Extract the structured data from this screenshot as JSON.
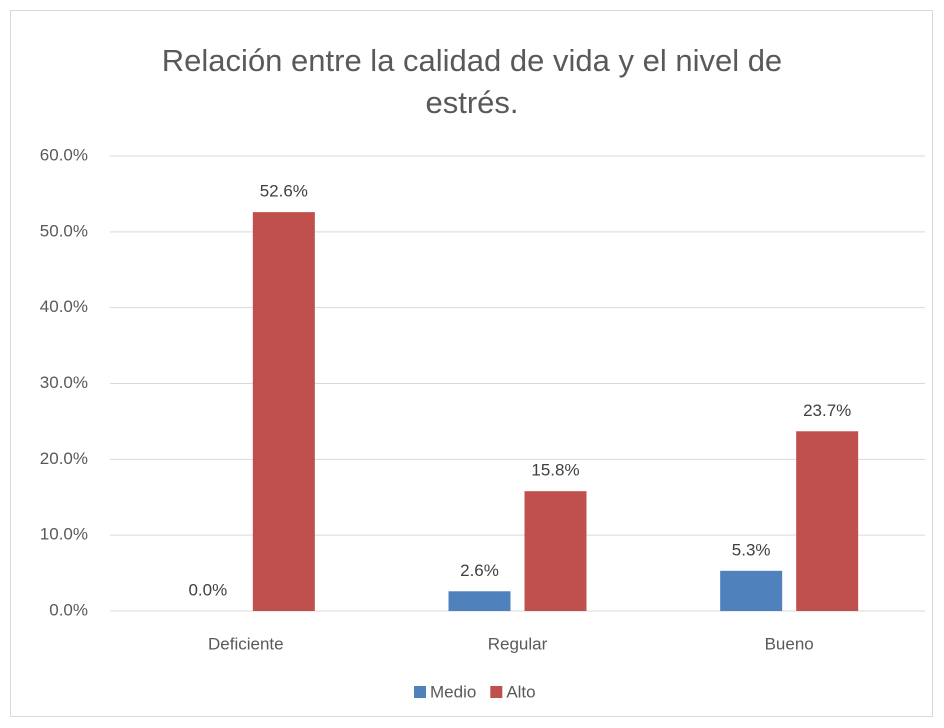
{
  "chart_data": {
    "type": "bar",
    "title": "Relación entre la calidad de vida y el nivel de estrés.",
    "categories": [
      "Deficiente",
      "Regular",
      "Bueno"
    ],
    "series": [
      {
        "name": "Medio",
        "color": "#4f81bd",
        "values": [
          0.0,
          2.6,
          5.3
        ],
        "value_labels": [
          "0.0%",
          "2.6%",
          "5.3%"
        ]
      },
      {
        "name": "Alto",
        "color": "#c0504d",
        "values": [
          52.6,
          15.8,
          23.7
        ],
        "value_labels": [
          "52.6%",
          "15.8%",
          "23.7%"
        ]
      }
    ],
    "ylim": [
      0,
      60
    ],
    "yticks": [
      {
        "value": 0,
        "label": "0.0%"
      },
      {
        "value": 10,
        "label": "10.0%"
      },
      {
        "value": 20,
        "label": "20.0%"
      },
      {
        "value": 30,
        "label": "30.0%"
      },
      {
        "value": 40,
        "label": "40.0%"
      },
      {
        "value": 50,
        "label": "50.0%"
      },
      {
        "value": 60,
        "label": "60.0%"
      }
    ],
    "grid": true,
    "legend": "bottom"
  }
}
